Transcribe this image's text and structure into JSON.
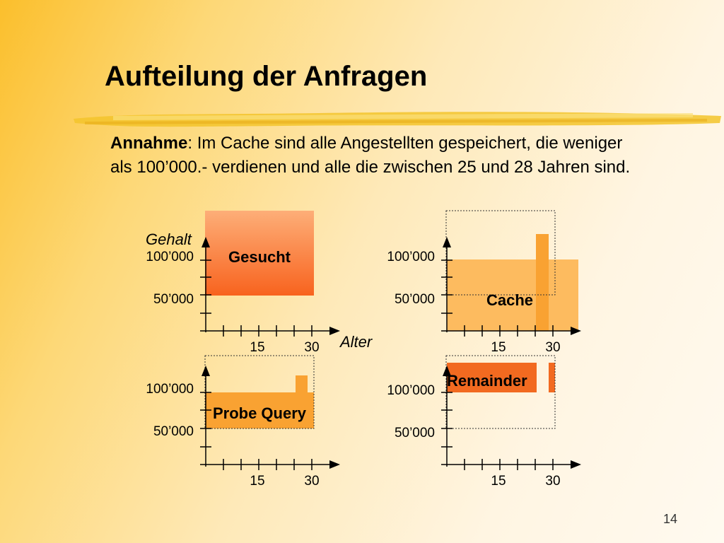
{
  "title": "Aufteilung der Anfragen",
  "intro": {
    "bold": "Annahme",
    "text": ": Im Cache sind alle Angestellten gespeichert, die weniger als 100’000.- verdienen und alle die zwischen 25 und 28 Jahren sind."
  },
  "axes": {
    "y_label": "Gehalt",
    "x_label": "Alter",
    "y_tick_high": "100’000",
    "y_tick_low": "50’000",
    "x_tick_a": "15",
    "x_tick_b": "30"
  },
  "panels": {
    "gesucht": "Gesucht",
    "cache": "Cache",
    "probe": "Probe Query",
    "remainder": "Remainder"
  },
  "colors": {
    "query_gradient_top": "#fdae78",
    "query_gradient_bottom": "#f8631e",
    "cache_fill": "#fdbb5f",
    "probe_fill": "#f9a232",
    "remainder_fill": "#f26a20",
    "axis": "#000000"
  },
  "page_number": "14"
}
